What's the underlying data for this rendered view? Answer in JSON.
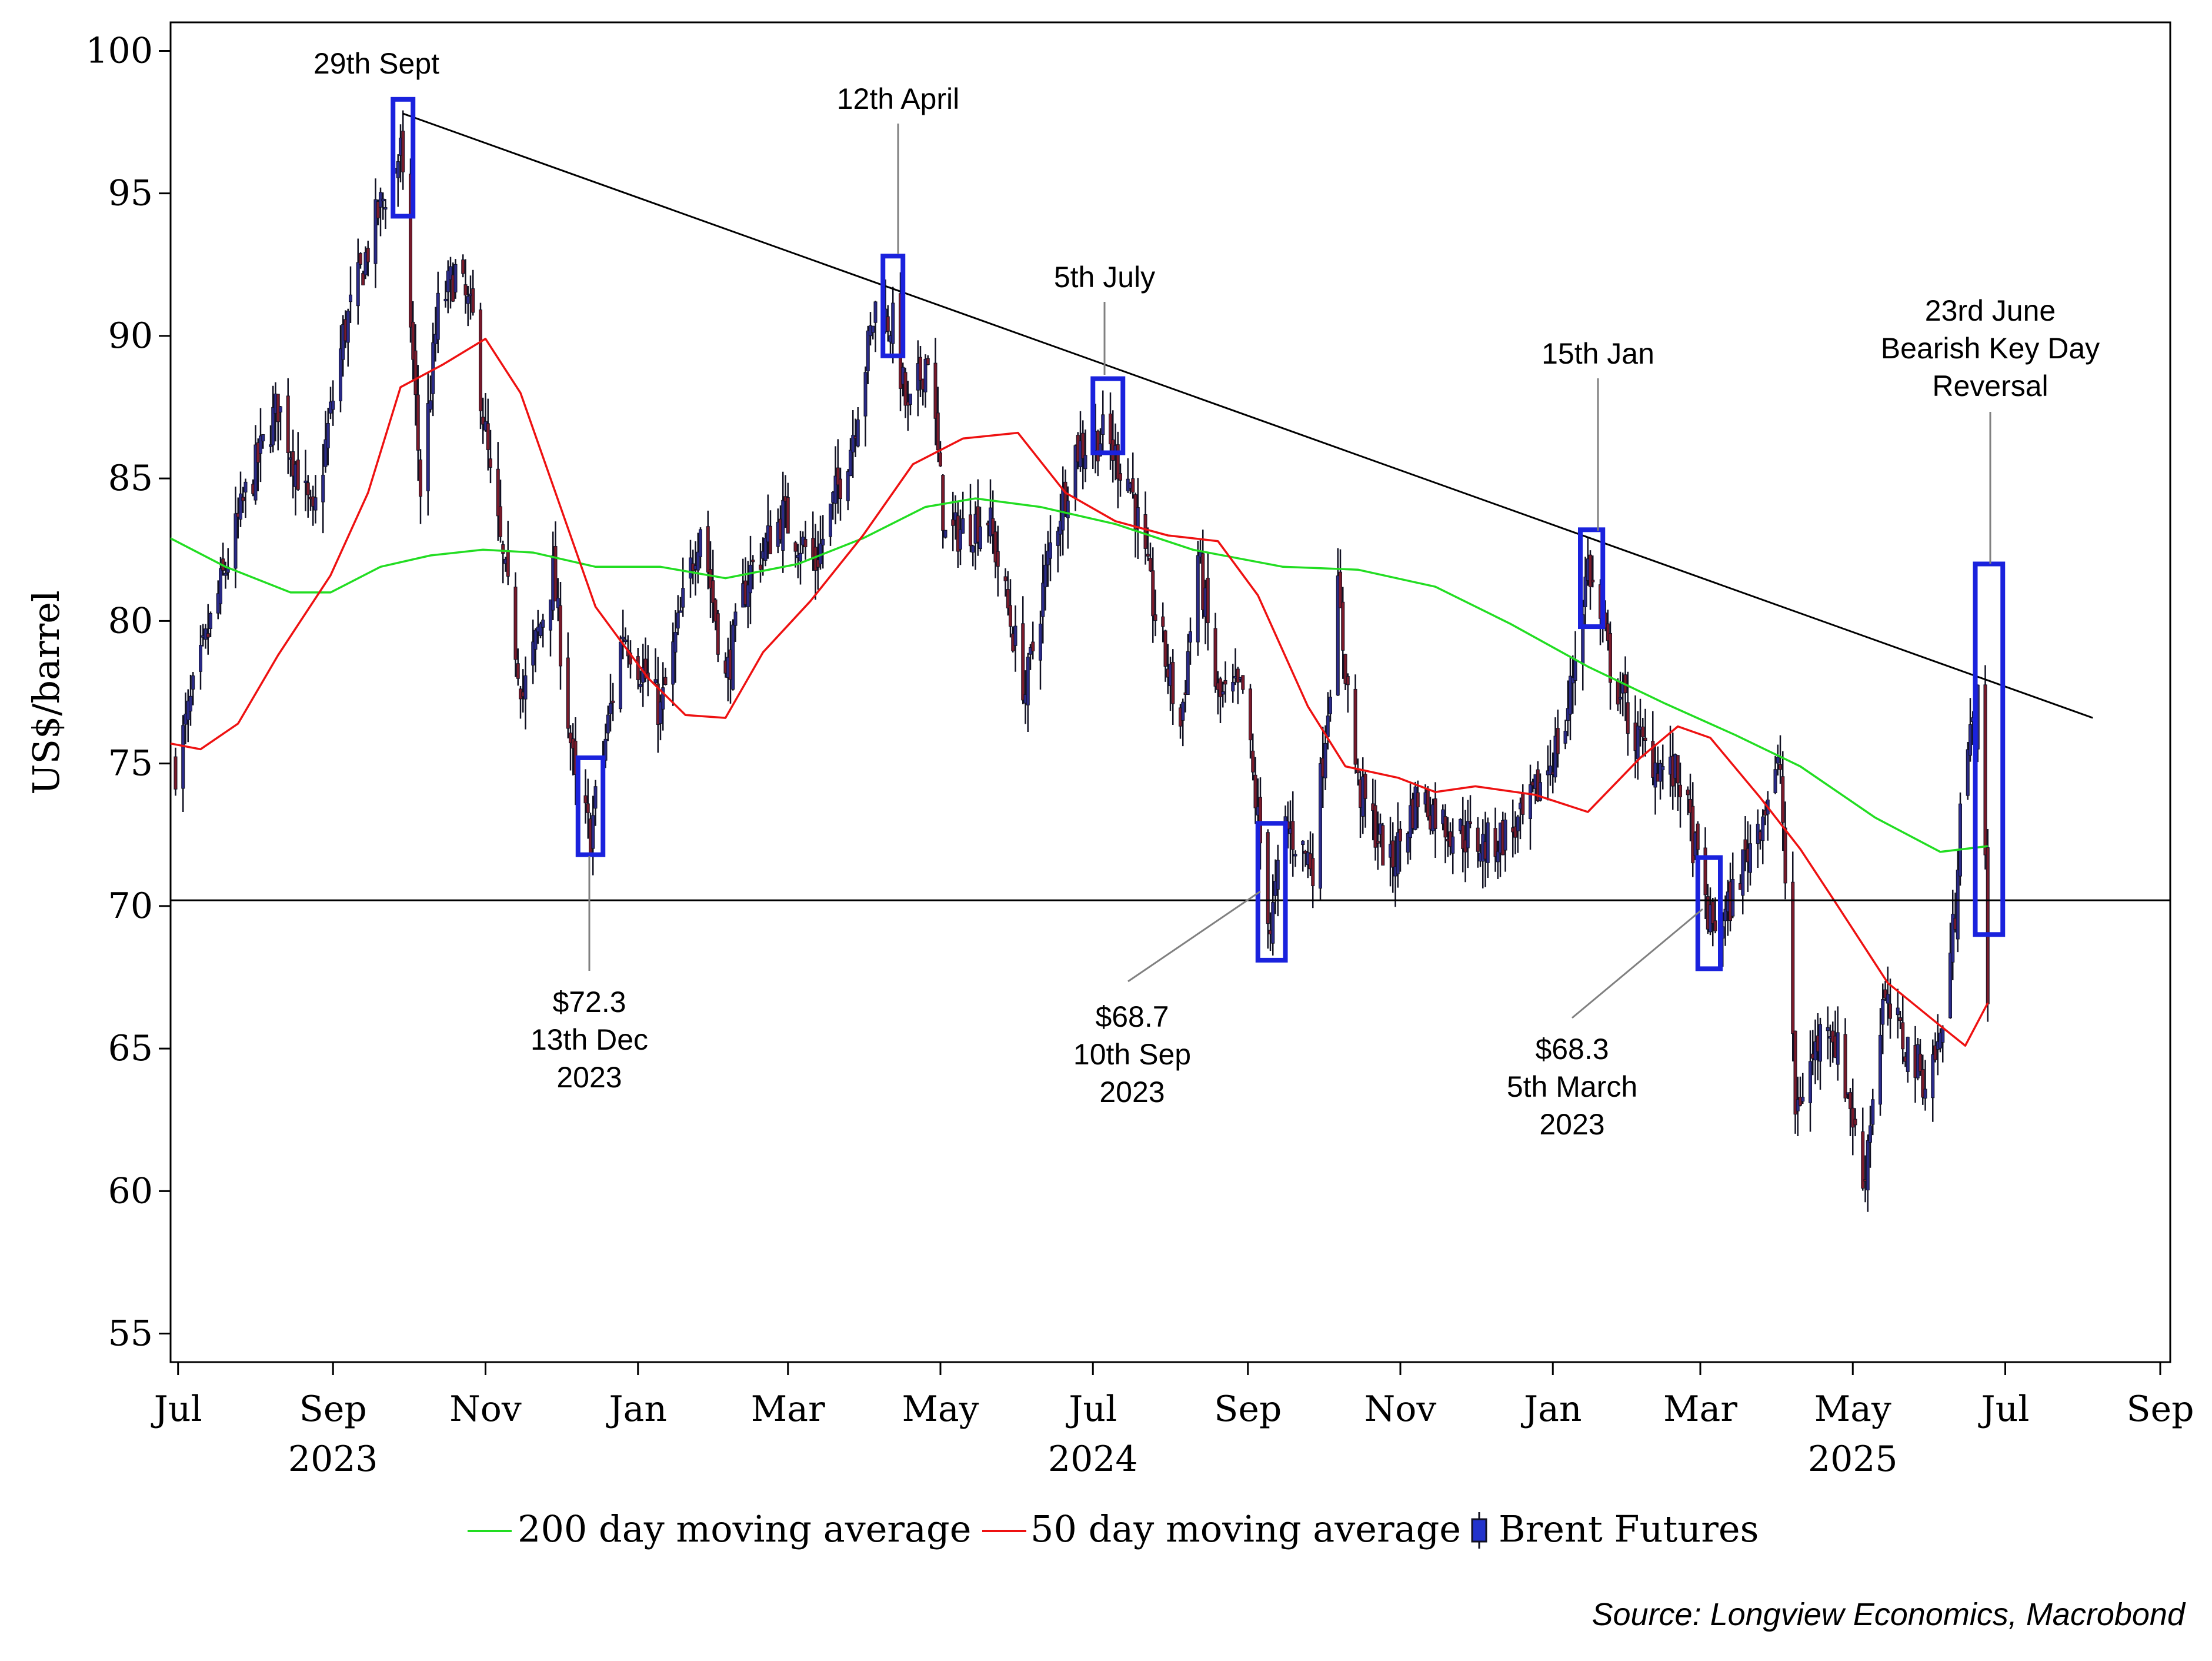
{
  "chart_data": {
    "type": "candlestick",
    "ylabel": "US$/barrel",
    "ylim": [
      54,
      101
    ],
    "x_range": [
      "2023-06-28",
      "2025-09-05"
    ],
    "y_ticks": [
      "100",
      "95",
      "90",
      "85",
      "80",
      "75",
      "70",
      "65",
      "60",
      "55"
    ],
    "y_tick_values": [
      100,
      95,
      90,
      85,
      80,
      75,
      70,
      65,
      60,
      55
    ],
    "x_ticks": [
      {
        "label": "Jul",
        "date": "2023-07-01"
      },
      {
        "label": "Sep",
        "date": "2023-09-01"
      },
      {
        "label": "Nov",
        "date": "2023-11-01"
      },
      {
        "label": "Jan",
        "date": "2024-01-01"
      },
      {
        "label": "Mar",
        "date": "2024-03-01"
      },
      {
        "label": "May",
        "date": "2024-05-01"
      },
      {
        "label": "Jul",
        "date": "2024-07-01"
      },
      {
        "label": "Sep",
        "date": "2024-09-01"
      },
      {
        "label": "Nov",
        "date": "2024-11-01"
      },
      {
        "label": "Jan",
        "date": "2025-01-01"
      },
      {
        "label": "Mar",
        "date": "2025-03-01"
      },
      {
        "label": "May",
        "date": "2025-05-01"
      },
      {
        "label": "Jul",
        "date": "2025-07-01"
      },
      {
        "label": "Sep",
        "date": "2025-09-01"
      }
    ],
    "year_labels": [
      {
        "label": "2023",
        "date": "2023-09-01"
      },
      {
        "label": "2024",
        "date": "2024-07-01"
      },
      {
        "label": "2025",
        "date": "2025-05-01"
      }
    ],
    "series": [
      {
        "name": "Brent Futures",
        "style": "ohlc",
        "color": "#1a1a3a",
        "keypoints": [
          [
            "2023-06-30",
            74.9
          ],
          [
            "2023-07-14",
            79.9
          ],
          [
            "2023-07-28",
            84.4
          ],
          [
            "2023-08-10",
            87.6
          ],
          [
            "2023-08-24",
            83.4
          ],
          [
            "2023-09-05",
            90.0
          ],
          [
            "2023-09-19",
            94.3
          ],
          [
            "2023-09-28",
            96.5
          ],
          [
            "2023-10-06",
            84.6
          ],
          [
            "2023-10-13",
            90.9
          ],
          [
            "2023-10-20",
            92.2
          ],
          [
            "2023-10-27",
            90.5
          ],
          [
            "2023-11-03",
            84.9
          ],
          [
            "2023-11-16",
            77.4
          ],
          [
            "2023-11-28",
            81.7
          ],
          [
            "2023-12-07",
            74.1
          ],
          [
            "2023-12-13",
            72.5
          ],
          [
            "2023-12-26",
            79.7
          ],
          [
            "2024-01-03",
            78.2
          ],
          [
            "2024-01-10",
            76.8
          ],
          [
            "2024-01-26",
            83.5
          ],
          [
            "2024-02-05",
            77.9
          ],
          [
            "2024-02-14",
            81.6
          ],
          [
            "2024-02-28",
            83.7
          ],
          [
            "2024-03-12",
            82.0
          ],
          [
            "2024-03-26",
            86.2
          ],
          [
            "2024-04-05",
            91.0
          ],
          [
            "2024-04-12",
            90.4
          ],
          [
            "2024-04-18",
            87.1
          ],
          [
            "2024-04-26",
            89.5
          ],
          [
            "2024-05-03",
            82.9
          ],
          [
            "2024-05-20",
            83.7
          ],
          [
            "2024-06-04",
            77.5
          ],
          [
            "2024-06-14",
            82.6
          ],
          [
            "2024-06-24",
            86.0
          ],
          [
            "2024-07-05",
            86.5
          ],
          [
            "2024-07-16",
            84.9
          ],
          [
            "2024-07-24",
            81.0
          ],
          [
            "2024-08-05",
            76.3
          ],
          [
            "2024-08-12",
            82.3
          ],
          [
            "2024-08-20",
            77.2
          ],
          [
            "2024-08-30",
            77.5
          ],
          [
            "2024-09-10",
            69.2
          ],
          [
            "2024-09-16",
            72.8
          ],
          [
            "2024-09-27",
            71.5
          ],
          [
            "2024-10-07",
            80.9
          ],
          [
            "2024-10-15",
            74.2
          ],
          [
            "2024-10-28",
            71.4
          ],
          [
            "2024-11-08",
            73.9
          ],
          [
            "2024-11-20",
            72.8
          ],
          [
            "2024-12-05",
            72.1
          ],
          [
            "2024-12-20",
            72.9
          ],
          [
            "2025-01-06",
            76.3
          ],
          [
            "2025-01-15",
            82.0
          ],
          [
            "2025-01-24",
            78.4
          ],
          [
            "2025-02-03",
            75.9
          ],
          [
            "2025-02-12",
            75.0
          ],
          [
            "2025-02-21",
            74.4
          ],
          [
            "2025-03-05",
            69.3
          ],
          [
            "2025-03-11",
            69.6
          ],
          [
            "2025-03-20",
            72.0
          ],
          [
            "2025-04-02",
            74.9
          ],
          [
            "2025-04-08",
            62.8
          ],
          [
            "2025-04-21",
            66.3
          ],
          [
            "2025-04-30",
            63.1
          ],
          [
            "2025-05-05",
            60.2
          ],
          [
            "2025-05-13",
            66.6
          ],
          [
            "2025-05-30",
            63.9
          ],
          [
            "2025-06-05",
            65.3
          ],
          [
            "2025-06-11",
            69.8
          ],
          [
            "2025-06-13",
            74.2
          ],
          [
            "2025-06-20",
            77.0
          ],
          [
            "2025-06-23",
            71.5
          ],
          [
            "2025-06-24",
            67.1
          ]
        ]
      },
      {
        "name": "200 day moving average",
        "style": "line",
        "color": "#22dd22",
        "points": [
          [
            "2023-06-28",
            82.9
          ],
          [
            "2023-07-20",
            81.9
          ],
          [
            "2023-08-15",
            81.0
          ],
          [
            "2023-08-31",
            81.0
          ],
          [
            "2023-09-20",
            81.9
          ],
          [
            "2023-10-10",
            82.3
          ],
          [
            "2023-10-31",
            82.5
          ],
          [
            "2023-11-20",
            82.4
          ],
          [
            "2023-12-15",
            81.9
          ],
          [
            "2024-01-10",
            81.9
          ],
          [
            "2024-02-05",
            81.5
          ],
          [
            "2024-03-05",
            82.0
          ],
          [
            "2024-03-31",
            82.9
          ],
          [
            "2024-04-25",
            84.0
          ],
          [
            "2024-05-15",
            84.3
          ],
          [
            "2024-06-10",
            84.0
          ],
          [
            "2024-07-10",
            83.4
          ],
          [
            "2024-08-10",
            82.5
          ],
          [
            "2024-09-15",
            81.9
          ],
          [
            "2024-10-15",
            81.8
          ],
          [
            "2024-11-15",
            81.2
          ],
          [
            "2024-12-15",
            79.9
          ],
          [
            "2025-01-15",
            78.4
          ],
          [
            "2025-02-15",
            77.1
          ],
          [
            "2025-03-15",
            76.0
          ],
          [
            "2025-04-10",
            74.9
          ],
          [
            "2025-05-10",
            73.1
          ],
          [
            "2025-06-05",
            71.9
          ],
          [
            "2025-06-24",
            72.1
          ]
        ]
      },
      {
        "name": "50 day moving average",
        "style": "line",
        "color": "#ee1111",
        "points": [
          [
            "2023-06-28",
            75.7
          ],
          [
            "2023-07-10",
            75.5
          ],
          [
            "2023-07-25",
            76.4
          ],
          [
            "2023-08-10",
            78.8
          ],
          [
            "2023-08-31",
            81.6
          ],
          [
            "2023-09-15",
            84.5
          ],
          [
            "2023-09-28",
            88.2
          ],
          [
            "2023-10-15",
            89.0
          ],
          [
            "2023-11-01",
            89.9
          ],
          [
            "2023-11-15",
            88.0
          ],
          [
            "2023-12-01",
            84.0
          ],
          [
            "2023-12-15",
            80.5
          ],
          [
            "2024-01-05",
            78.0
          ],
          [
            "2024-01-20",
            76.7
          ],
          [
            "2024-02-05",
            76.6
          ],
          [
            "2024-02-20",
            78.9
          ],
          [
            "2024-03-10",
            80.7
          ],
          [
            "2024-03-31",
            83.0
          ],
          [
            "2024-04-20",
            85.5
          ],
          [
            "2024-05-10",
            86.4
          ],
          [
            "2024-06-01",
            86.6
          ],
          [
            "2024-06-20",
            84.5
          ],
          [
            "2024-07-10",
            83.5
          ],
          [
            "2024-07-31",
            83.0
          ],
          [
            "2024-08-20",
            82.8
          ],
          [
            "2024-09-05",
            80.9
          ],
          [
            "2024-09-25",
            77.0
          ],
          [
            "2024-10-10",
            74.9
          ],
          [
            "2024-10-31",
            74.5
          ],
          [
            "2024-11-15",
            74.0
          ],
          [
            "2024-12-01",
            74.2
          ],
          [
            "2024-12-25",
            73.9
          ],
          [
            "2025-01-15",
            73.3
          ],
          [
            "2025-02-05",
            75.2
          ],
          [
            "2025-02-20",
            76.3
          ],
          [
            "2025-03-05",
            75.9
          ],
          [
            "2025-03-25",
            73.8
          ],
          [
            "2025-04-10",
            72.0
          ],
          [
            "2025-04-25",
            70.0
          ],
          [
            "2025-05-15",
            67.3
          ],
          [
            "2025-06-05",
            65.8
          ],
          [
            "2025-06-15",
            65.1
          ],
          [
            "2025-06-24",
            66.6
          ]
        ]
      }
    ],
    "trendlines": [
      {
        "from": [
          "2023-09-29",
          97.8
        ],
        "to": [
          "2025-08-05",
          76.6
        ]
      },
      {
        "from": [
          "2023-06-28",
          70.2
        ],
        "to": [
          "2025-09-05",
          70.2
        ]
      }
    ],
    "highlight_boxes": [
      {
        "from": "2023-09-25",
        "to": "2023-10-03",
        "low": 94.2,
        "high": 98.3
      },
      {
        "from": "2023-12-08",
        "to": "2023-12-18",
        "low": 71.8,
        "high": 75.2
      },
      {
        "from": "2024-04-08",
        "to": "2024-04-16",
        "low": 89.3,
        "high": 92.8
      },
      {
        "from": "2024-07-01",
        "to": "2024-07-13",
        "low": 85.9,
        "high": 88.5
      },
      {
        "from": "2024-09-05",
        "to": "2024-09-16",
        "low": 68.1,
        "high": 72.9
      },
      {
        "from": "2025-01-12",
        "to": "2025-01-21",
        "low": 79.8,
        "high": 83.2
      },
      {
        "from": "2025-02-28",
        "to": "2025-03-09",
        "low": 67.8,
        "high": 71.7
      },
      {
        "from": "2025-06-19",
        "to": "2025-06-30",
        "low": 69.0,
        "high": 82.0
      }
    ],
    "annotations": [
      {
        "lines": [
          "29th Sept"
        ]
      },
      {
        "lines": [
          "12th April"
        ]
      },
      {
        "lines": [
          "5th July"
        ]
      },
      {
        "lines": [
          "15th Jan"
        ]
      },
      {
        "lines": [
          "23rd June",
          "Bearish Key Day",
          "Reversal"
        ]
      },
      {
        "lines": [
          "$72.3",
          "13th Dec",
          "2023"
        ]
      },
      {
        "lines": [
          "$68.7",
          "10th Sep",
          "2023"
        ]
      },
      {
        "lines": [
          "$68.3",
          "5th March",
          "2023"
        ]
      }
    ],
    "legend": {
      "position": "bottom",
      "items": [
        "200 day moving average",
        "50 day moving average",
        "Brent Futures"
      ]
    },
    "grid": false
  },
  "source": "Source: Longview Economics, Macrobond"
}
